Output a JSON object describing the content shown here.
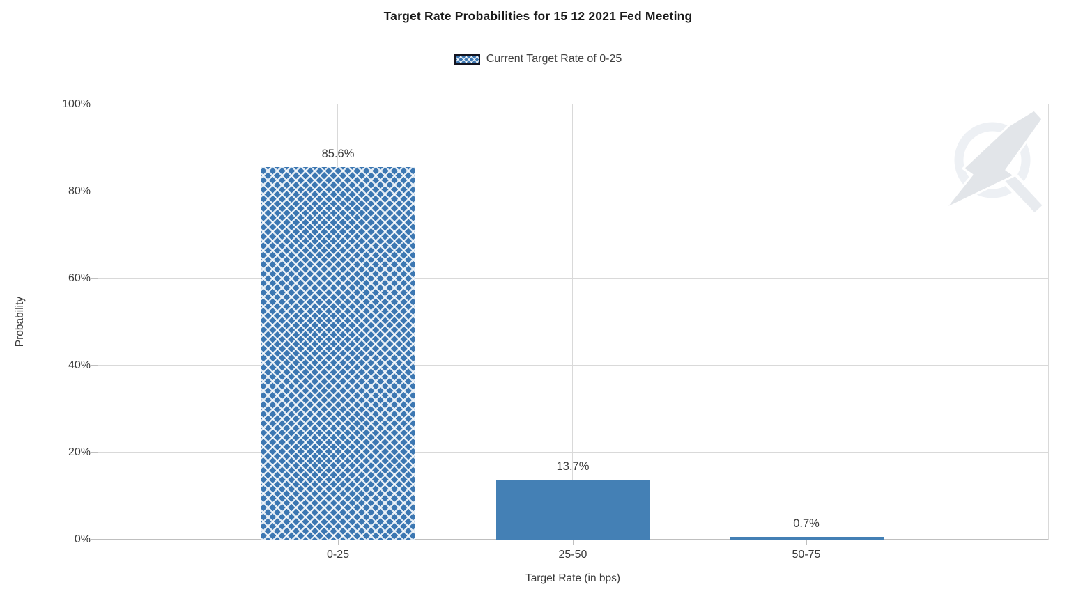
{
  "chart_data": {
    "type": "bar",
    "title": "Target Rate Probabilities for 15 12 2021 Fed Meeting",
    "legend": {
      "position": "top",
      "items": [
        {
          "label": "Current Target Rate of 0-25",
          "pattern": "crosshatch"
        }
      ]
    },
    "xlabel": "Target Rate (in bps)",
    "ylabel": "Probability",
    "categories": [
      "0-25",
      "25-50",
      "50-75"
    ],
    "series": [
      {
        "name": "Current Target Rate of 0-25",
        "values": [
          85.6,
          13.7,
          0.7
        ],
        "value_labels": [
          "85.6%",
          "13.7%",
          "0.7%"
        ],
        "bar_patterns": [
          "crosshatch",
          "solid",
          "solid"
        ]
      }
    ],
    "ylim": [
      0,
      100
    ],
    "ytick_values": [
      0,
      20,
      40,
      60,
      80,
      100
    ],
    "ytick_labels": [
      "0%",
      "20%",
      "40%",
      "60%",
      "80%",
      "100%"
    ],
    "grid": true,
    "colors": {
      "bar_solid": "#4480b5",
      "bar_hatch_background": "#3c77b2",
      "hatch_line": "#ffffff",
      "grid_line": "#d9d9d9",
      "axis_line": "#bfbfbf",
      "title_text": "#1a1a1a",
      "label_text": "#3a3a3a"
    }
  },
  "watermark": {
    "name": "quikstrike-logo"
  }
}
